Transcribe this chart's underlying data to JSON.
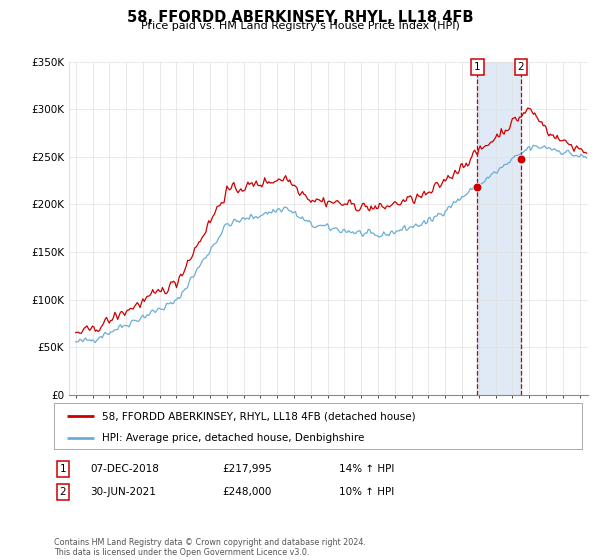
{
  "title": "58, FFORDD ABERKINSEY, RHYL, LL18 4FB",
  "subtitle": "Price paid vs. HM Land Registry's House Price Index (HPI)",
  "legend_entry1": "58, FFORDD ABERKINSEY, RHYL, LL18 4FB (detached house)",
  "legend_entry2": "HPI: Average price, detached house, Denbighshire",
  "transaction1_date": "07-DEC-2018",
  "transaction1_price": 217995,
  "transaction1_hpi": "14% ↑ HPI",
  "transaction2_date": "30-JUN-2021",
  "transaction2_price": 248000,
  "transaction2_hpi": "10% ↑ HPI",
  "copyright": "Contains HM Land Registry data © Crown copyright and database right 2024.\nThis data is licensed under the Open Government Licence v3.0.",
  "hpi_color": "#6baed6",
  "price_color": "#cc0000",
  "marker_color": "#cc0000",
  "background_color": "#ffffff",
  "plot_bg_color": "#ffffff",
  "ylim": [
    0,
    350000
  ],
  "yticks": [
    0,
    50000,
    100000,
    150000,
    200000,
    250000,
    300000,
    350000
  ],
  "shade_color": "#c6d9f0",
  "vline_color": "#cc0000",
  "transaction1_year": 2018.92,
  "transaction2_year": 2021.5,
  "grid_color": "#e0e0e0"
}
